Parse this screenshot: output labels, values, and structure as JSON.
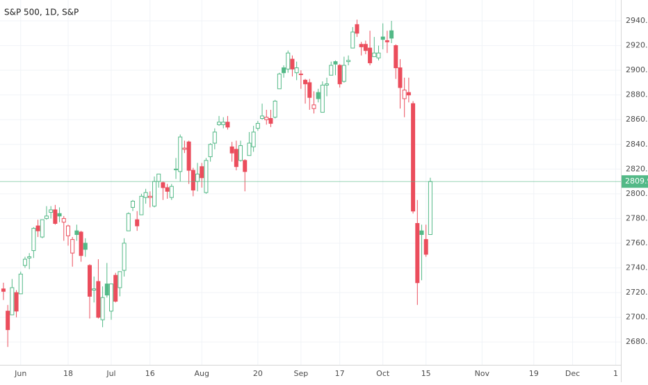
{
  "chart_data": {
    "type": "candlestick",
    "title": "S&P 500, 1D, S&P",
    "x": [
      -4,
      -3,
      -2,
      -1,
      0,
      1,
      2,
      3,
      4,
      5,
      6,
      7,
      8,
      9,
      10,
      11,
      12,
      13,
      14,
      15,
      16,
      17,
      18,
      19,
      20,
      21,
      22,
      23,
      24,
      25,
      26,
      27,
      28,
      29,
      30,
      31,
      32,
      33,
      34,
      35,
      36,
      37,
      38,
      39,
      40,
      41,
      42,
      43,
      44,
      45,
      46,
      47,
      48,
      49,
      50,
      51,
      52,
      53,
      54,
      55,
      56,
      57,
      58,
      59,
      60,
      61,
      62,
      63,
      64,
      65,
      66,
      67,
      68,
      69,
      70,
      71,
      72,
      73,
      74,
      75,
      76,
      77,
      78,
      79,
      80,
      81,
      82,
      83,
      84,
      85,
      86,
      87,
      88,
      89,
      90,
      91,
      92,
      93,
      94,
      95
    ],
    "open": [
      2723,
      2705,
      2702,
      2720,
      2719,
      2742,
      2748,
      2754,
      2774,
      2765,
      2780,
      2785,
      2787,
      2784,
      2777,
      2766,
      2752,
      2770,
      2769,
      2760,
      2742,
      2722,
      2729,
      2698,
      2727,
      2705,
      2734,
      2724,
      2738,
      2770,
      2789,
      2779,
      2783,
      2797,
      2797,
      2790,
      2810,
      2809,
      2805,
      2797,
      2820,
      2818,
      2836,
      2842,
      2819,
      2810,
      2822,
      2801,
      2830,
      2841,
      2856,
      2856,
      2858,
      2838,
      2836,
      2827,
      2827,
      2831,
      2838,
      2853,
      2861,
      2860,
      2861,
      2862,
      2885,
      2902,
      2901,
      2909,
      2898,
      2897,
      2892,
      2890,
      2869,
      2882,
      2866,
      2888,
      2896,
      2907,
      2904,
      2891,
      2907,
      2918,
      2937,
      2921,
      2921,
      2918,
      2911,
      2910,
      2927,
      2924,
      2932,
      2920,
      2902,
      2877,
      2882,
      2873,
      2776,
      2770,
      2763,
      2767
    ],
    "high": [
      2728,
      2710,
      2731,
      2722,
      2737,
      2749,
      2752,
      2773,
      2779,
      2779,
      2790,
      2790,
      2791,
      2789,
      2782,
      2775,
      2765,
      2775,
      2770,
      2764,
      2743,
      2733,
      2747,
      2725,
      2744,
      2727,
      2736,
      2737,
      2764,
      2785,
      2795,
      2786,
      2800,
      2804,
      2802,
      2814,
      2816,
      2810,
      2808,
      2808,
      2829,
      2848,
      2843,
      2843,
      2821,
      2825,
      2825,
      2829,
      2841,
      2853,
      2863,
      2862,
      2863,
      2842,
      2843,
      2843,
      2828,
      2850,
      2855,
      2859,
      2873,
      2868,
      2868,
      2876,
      2898,
      2904,
      2916,
      2912,
      2907,
      2900,
      2893,
      2893,
      2883,
      2885,
      2891,
      2894,
      2907,
      2908,
      2905,
      2911,
      2912,
      2935,
      2941,
      2923,
      2924,
      2932,
      2927,
      2920,
      2938,
      2932,
      2940,
      2921,
      2909,
      2894,
      2894,
      2875,
      2795,
      2775,
      2775,
      2813
    ],
    "low": [
      2714,
      2676,
      2702,
      2700,
      2719,
      2740,
      2739,
      2748,
      2765,
      2764,
      2779,
      2780,
      2775,
      2777,
      2762,
      2758,
      2741,
      2762,
      2745,
      2749,
      2699,
      2712,
      2699,
      2692,
      2716,
      2698,
      2712,
      2717,
      2733,
      2770,
      2786,
      2770,
      2783,
      2792,
      2789,
      2789,
      2805,
      2795,
      2796,
      2795,
      2812,
      2810,
      2833,
      2808,
      2798,
      2802,
      2805,
      2800,
      2826,
      2836,
      2855,
      2853,
      2852,
      2826,
      2819,
      2826,
      2802,
      2831,
      2834,
      2851,
      2860,
      2856,
      2854,
      2861,
      2885,
      2894,
      2898,
      2895,
      2892,
      2885,
      2873,
      2868,
      2865,
      2874,
      2866,
      2879,
      2896,
      2896,
      2886,
      2890,
      2904,
      2918,
      2927,
      2912,
      2913,
      2904,
      2911,
      2908,
      2917,
      2914,
      2922,
      2893,
      2869,
      2862,
      2874,
      2784,
      2710,
      2730,
      2749,
      2767
    ],
    "close": [
      2721,
      2690,
      2724,
      2705,
      2735,
      2747,
      2749,
      2772,
      2770,
      2779,
      2782,
      2787,
      2776,
      2782,
      2780,
      2774,
      2763,
      2767,
      2750,
      2755,
      2717,
      2723,
      2700,
      2716,
      2718,
      2727,
      2713,
      2737,
      2760,
      2784,
      2794,
      2774,
      2798,
      2801,
      2798,
      2810,
      2816,
      2805,
      2802,
      2806,
      2820,
      2846,
      2837,
      2819,
      2803,
      2816,
      2813,
      2827,
      2840,
      2850,
      2858,
      2858,
      2854,
      2833,
      2822,
      2839,
      2818,
      2841,
      2850,
      2857,
      2863,
      2862,
      2857,
      2875,
      2897,
      2898,
      2914,
      2901,
      2902,
      2897,
      2889,
      2878,
      2872,
      2877,
      2888,
      2889,
      2904,
      2905,
      2889,
      2904,
      2908,
      2931,
      2930,
      2919,
      2916,
      2906,
      2914,
      2914,
      2925,
      2923,
      2926,
      2902,
      2886,
      2884,
      2880,
      2786,
      2728,
      2767,
      2751,
      2809.92
    ],
    "up_color": "#53b987",
    "down_color": "#eb4d5c",
    "xlim": [
      -4.8,
      139.2
    ],
    "ylim": [
      2661.5,
      2956.9
    ],
    "grid": true,
    "xticks": [
      {
        "value": 0,
        "label": "Jun"
      },
      {
        "value": 11,
        "label": "18"
      },
      {
        "value": 21,
        "label": "Jul"
      },
      {
        "value": 30,
        "label": "16"
      },
      {
        "value": 42,
        "label": "Aug"
      },
      {
        "value": 55,
        "label": "20"
      },
      {
        "value": 65,
        "label": "Sep"
      },
      {
        "value": 74,
        "label": "17"
      },
      {
        "value": 84,
        "label": "Oct"
      },
      {
        "value": 94,
        "label": "15"
      },
      {
        "value": 107,
        "label": "Nov"
      },
      {
        "value": 119,
        "label": "19"
      },
      {
        "value": 128,
        "label": "Dec"
      },
      {
        "value": 138,
        "label": "1"
      }
    ],
    "yticks": [
      {
        "value": 2680,
        "label": "2680.00"
      },
      {
        "value": 2700,
        "label": "2700.00"
      },
      {
        "value": 2720,
        "label": "2720.00"
      },
      {
        "value": 2740,
        "label": "2740.00"
      },
      {
        "value": 2760,
        "label": "2760.00"
      },
      {
        "value": 2780,
        "label": "2780.00"
      },
      {
        "value": 2800,
        "label": "2800.00"
      },
      {
        "value": 2820,
        "label": "2820.00"
      },
      {
        "value": 2840,
        "label": "2840.00"
      },
      {
        "value": 2860,
        "label": "2860.00"
      },
      {
        "value": 2880,
        "label": "2880.00"
      },
      {
        "value": 2900,
        "label": "2900.00"
      },
      {
        "value": 2920,
        "label": "2920.00"
      },
      {
        "value": 2940,
        "label": "2940.00"
      }
    ]
  }
}
